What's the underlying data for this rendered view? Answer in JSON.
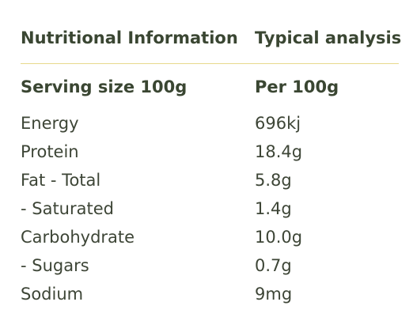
{
  "table": {
    "header": {
      "col1": "Nutritional Information",
      "col2": "Typical analysis"
    },
    "subheader": {
      "col1": "Serving size 100g",
      "col2": "Per 100g"
    },
    "rows": [
      {
        "nutrient": "Energy",
        "value": "696kj"
      },
      {
        "nutrient": "Protein",
        "value": "18.4g"
      },
      {
        "nutrient": "Fat - Total",
        "value": "5.8g"
      },
      {
        "nutrient": "- Saturated",
        "value": "1.4g"
      },
      {
        "nutrient": "Carbohydrate",
        "value": "10.0g"
      },
      {
        "nutrient": "- Sugars",
        "value": "0.7g"
      },
      {
        "nutrient": "Sodium",
        "value": "9mg"
      }
    ]
  },
  "colors": {
    "text": "#3d4536",
    "divider": "#e8d98c"
  }
}
